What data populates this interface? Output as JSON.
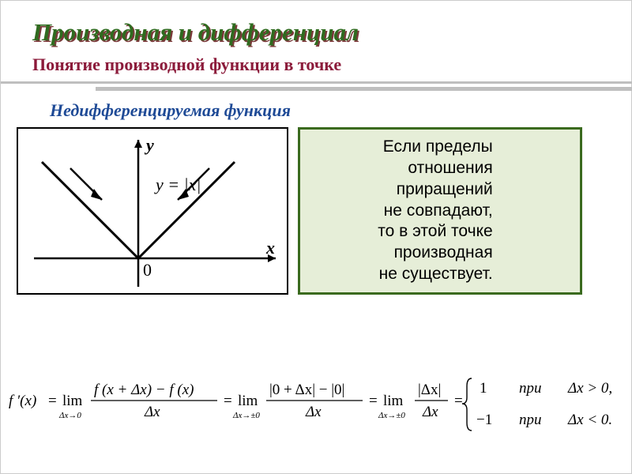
{
  "title": {
    "text": "Производная и дифференциал",
    "color": "#2f6b1f",
    "shadow": "#7a3a3a"
  },
  "subtitle": {
    "text": "Понятие производной функции в точке",
    "color": "#8b1a3a"
  },
  "section_label": {
    "text": "Недифференцируемая функция",
    "color": "#1e4a96"
  },
  "rule_color": "#bfbfbf",
  "graph": {
    "type": "function-plot",
    "function_label": "y = |x|",
    "axis_labels": {
      "x": "x",
      "y": "y",
      "origin": "0"
    },
    "axis_color": "#000000",
    "line_color": "#000000",
    "line_width": 2.5,
    "xlim": [
      -1.5,
      1.5
    ],
    "ylim": [
      -0.4,
      1.6
    ],
    "arrows": [
      {
        "from": [
          -1.2,
          1.35
        ],
        "to": [
          -0.65,
          0.8
        ]
      },
      {
        "from": [
          1.2,
          1.35
        ],
        "to": [
          0.65,
          0.8
        ]
      }
    ],
    "aspect": "344:212",
    "background": "#ffffff"
  },
  "callout": {
    "lines": [
      "Если пределы",
      "отношения",
      "приращений",
      "не совпадают,",
      "то в этой точке",
      "производная",
      "не существует."
    ],
    "border_color": "#3a6a1e",
    "background": "#e6eed8",
    "font_family": "Verdana",
    "font_size": 21,
    "text_color": "#000000",
    "align": "right"
  },
  "formula": {
    "lhs": "f ′(x)",
    "step1_top": "f (x + Δx) − f (x)",
    "step1_bot": "Δx",
    "step1_sub": "Δx→0",
    "step2_top": "|0 + Δx| − |0|",
    "step2_bot": "Δx",
    "step2_sub": "Δx→±0",
    "step3_top": "|Δx|",
    "step3_bot": "Δx",
    "step3_sub": "Δx→±0",
    "piecewise": [
      {
        "value": "1",
        "cond": "при",
        "dom": "Δx > 0,"
      },
      {
        "value": "−1",
        "cond": "при",
        "dom": "Δx < 0."
      }
    ],
    "lim_word": "lim",
    "font_size": 18,
    "color": "#000000"
  }
}
